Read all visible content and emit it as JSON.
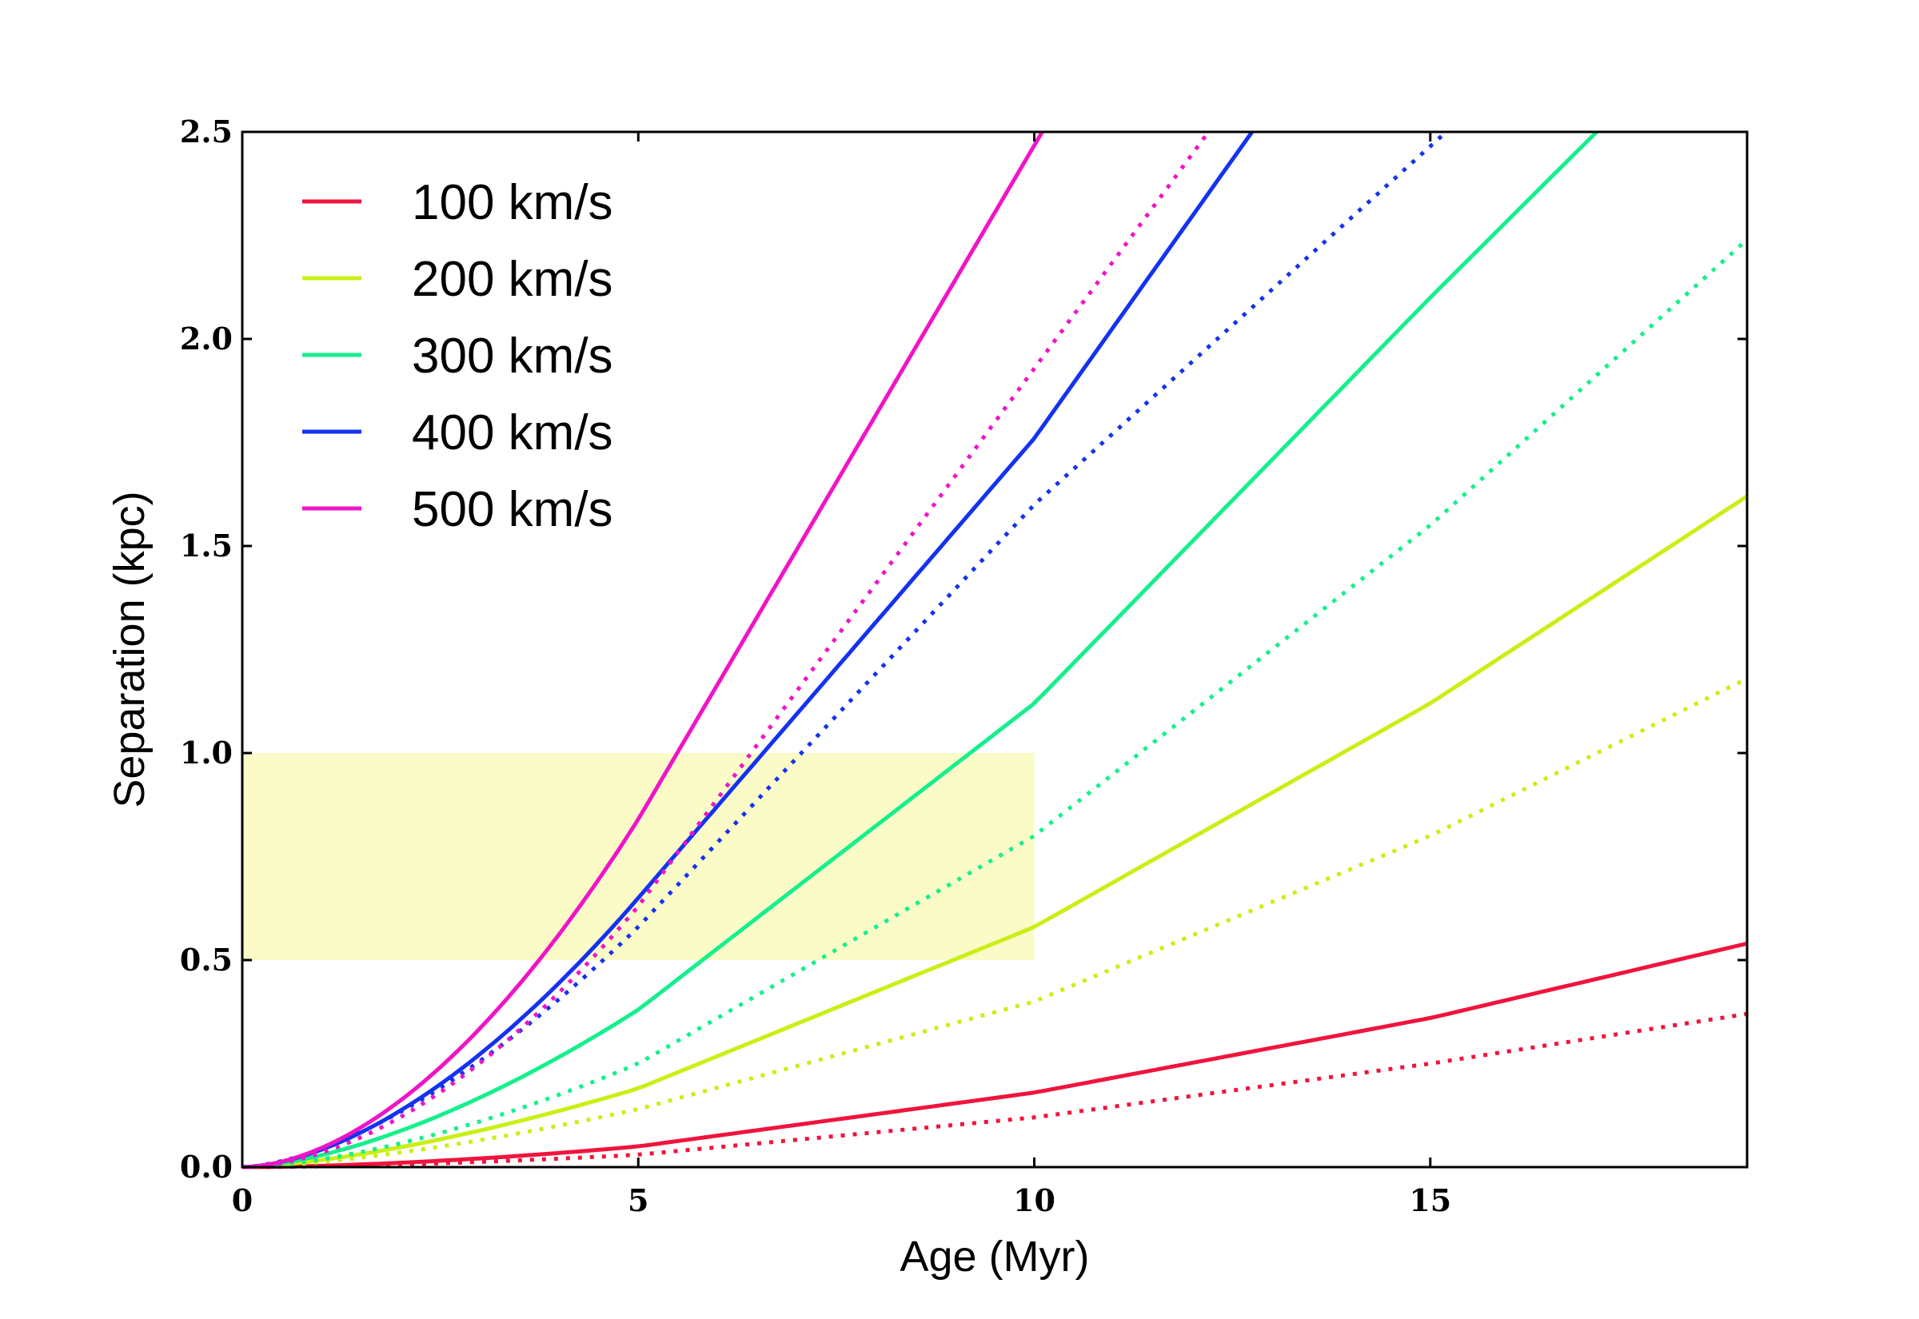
{
  "chart_data": {
    "type": "line",
    "title": "",
    "xlabel": "Age (Myr)",
    "ylabel": "Separation (kpc)",
    "xlim": [
      0,
      19
    ],
    "ylim": [
      0,
      2.5
    ],
    "xticks": [
      0,
      5,
      10,
      15
    ],
    "xtick_labels": [
      "0",
      "5",
      "10",
      "15"
    ],
    "yticks": [
      0,
      0.5,
      1.0,
      1.5,
      2.0,
      2.5
    ],
    "ytick_labels": [
      "0.0",
      "0.5",
      "1.0",
      "1.5",
      "2.0",
      "2.5"
    ],
    "grid": false,
    "legend_position": "top-left",
    "shaded_region": {
      "x": [
        0,
        10
      ],
      "y": [
        0.5,
        1.0
      ],
      "color": "#fbfbc8"
    },
    "series": [
      {
        "name": "100 km/s",
        "color": "#f0143c",
        "style": "solid",
        "exponent": 1.7,
        "x": [
          0,
          5,
          10,
          15,
          19
        ],
        "y": [
          0,
          0.05,
          0.18,
          0.36,
          0.54
        ]
      },
      {
        "name": "100 km/s",
        "color": "#f0143c",
        "style": "dotted",
        "legend": false,
        "exponent": 1.7,
        "x": [
          0,
          5,
          10,
          15,
          19
        ],
        "y": [
          0,
          0.03,
          0.12,
          0.25,
          0.37
        ]
      },
      {
        "name": "200 km/s",
        "color": "#c8f014",
        "style": "solid",
        "exponent": 1.5,
        "x": [
          0,
          5,
          10,
          15,
          19
        ],
        "y": [
          0,
          0.19,
          0.58,
          1.12,
          1.62
        ]
      },
      {
        "name": "200 km/s",
        "color": "#c8f014",
        "style": "dotted",
        "legend": false,
        "exponent": 1.5,
        "x": [
          0,
          5,
          10,
          15,
          19
        ],
        "y": [
          0,
          0.14,
          0.4,
          0.8,
          1.18
        ]
      },
      {
        "name": "300 km/s",
        "color": "#14f08c",
        "style": "solid",
        "exponent": 1.6,
        "x": [
          0,
          5,
          10,
          15,
          17.1
        ],
        "y": [
          0,
          0.38,
          1.12,
          2.1,
          2.5
        ]
      },
      {
        "name": "300 km/s",
        "color": "#14f08c",
        "style": "dotted",
        "legend": false,
        "exponent": 1.6,
        "x": [
          0,
          5,
          10,
          15,
          19
        ],
        "y": [
          0,
          0.25,
          0.8,
          1.55,
          2.24
        ]
      },
      {
        "name": "400 km/s",
        "color": "#1432f0",
        "style": "solid",
        "exponent": 1.7,
        "x": [
          0,
          5,
          10,
          12.75
        ],
        "y": [
          0,
          0.65,
          1.76,
          2.5
        ]
      },
      {
        "name": "400 km/s",
        "color": "#1432f0",
        "style": "dotted",
        "legend": false,
        "exponent": 1.6,
        "x": [
          0,
          5,
          10,
          15.2
        ],
        "y": [
          0,
          0.58,
          1.6,
          2.5
        ]
      },
      {
        "name": "500 km/s",
        "color": "#f014c8",
        "style": "solid",
        "exponent": 1.8,
        "x": [
          0,
          5,
          10.1
        ],
        "y": [
          0,
          0.84,
          2.5
        ]
      },
      {
        "name": "500 km/s",
        "color": "#f014c8",
        "style": "dotted",
        "legend": false,
        "exponent": 1.8,
        "x": [
          0,
          5,
          12.2
        ],
        "y": [
          0,
          0.63,
          2.5
        ]
      }
    ]
  }
}
